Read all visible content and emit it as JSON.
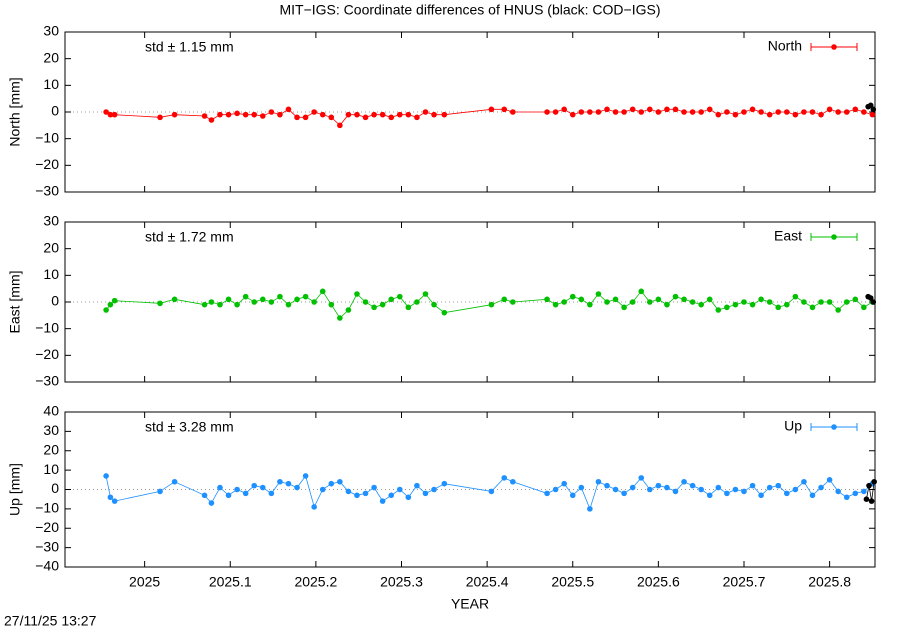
{
  "title": "MIT−IGS: Coordinate differences of HNUS (black: COD−IGS)",
  "xlabel": "YEAR",
  "timestamp": "27/11/25 13:27",
  "chart_data": [
    {
      "type": "line",
      "ylabel": "North [mm]",
      "annotation": "std ± 1.15 mm",
      "xlim": [
        2024.907,
        2025.853
      ],
      "xticks": [
        2025,
        2025.1,
        2025.2,
        2025.3,
        2025.4,
        2025.5,
        2025.6,
        2025.7,
        2025.8
      ],
      "ylim": [
        -30,
        30
      ],
      "yticks": [
        {
          "value": -30,
          "label": "−30"
        },
        {
          "value": -20,
          "label": "−20"
        },
        {
          "value": -10,
          "label": "−10"
        },
        0,
        10,
        20,
        30
      ],
      "legend": "top-right",
      "series": [
        {
          "name": "North",
          "color": "#ff0000",
          "x": [
            2024.955,
            2024.96,
            2024.965,
            2025.018,
            2025.035,
            2025.07,
            2025.078,
            2025.088,
            2025.098,
            2025.108,
            2025.118,
            2025.128,
            2025.138,
            2025.148,
            2025.158,
            2025.168,
            2025.178,
            2025.188,
            2025.198,
            2025.208,
            2025.218,
            2025.228,
            2025.238,
            2025.248,
            2025.258,
            2025.268,
            2025.278,
            2025.288,
            2025.298,
            2025.308,
            2025.318,
            2025.328,
            2025.338,
            2025.35,
            2025.405,
            2025.42,
            2025.43,
            2025.47,
            2025.48,
            2025.49,
            2025.5,
            2025.51,
            2025.52,
            2025.53,
            2025.54,
            2025.55,
            2025.56,
            2025.57,
            2025.58,
            2025.59,
            2025.6,
            2025.61,
            2025.62,
            2025.63,
            2025.64,
            2025.65,
            2025.66,
            2025.67,
            2025.68,
            2025.69,
            2025.7,
            2025.71,
            2025.72,
            2025.73,
            2025.74,
            2025.75,
            2025.76,
            2025.77,
            2025.78,
            2025.79,
            2025.8,
            2025.81,
            2025.82,
            2025.83,
            2025.84,
            2025.85
          ],
          "values": [
            0,
            -1,
            -1,
            -2,
            -1,
            -1.5,
            -3,
            -1,
            -1,
            -0.5,
            -1,
            -1,
            -1.5,
            0,
            -1,
            1,
            -2,
            -2,
            0,
            -1,
            -2,
            -5,
            -1,
            -1,
            -2,
            -1,
            -1,
            -2,
            -1,
            -1,
            -2,
            0,
            -1,
            -1,
            1,
            1,
            0,
            0,
            0,
            1,
            -1,
            0,
            0,
            0,
            1,
            0,
            0,
            1,
            0,
            1,
            0,
            1,
            1,
            0,
            0,
            0,
            1,
            -1,
            0,
            -1,
            0,
            1,
            0,
            -1,
            0,
            0,
            -1,
            0,
            0,
            -1,
            1,
            0,
            0,
            1,
            0,
            -1
          ]
        },
        {
          "color": "#000000",
          "x": [
            2025.845,
            2025.848,
            2025.851
          ],
          "values": [
            2,
            2.5,
            1
          ]
        }
      ]
    },
    {
      "type": "line",
      "ylabel": "East [mm]",
      "annotation": "std ± 1.72 mm",
      "xlim": [
        2024.907,
        2025.853
      ],
      "xticks": [
        2025,
        2025.1,
        2025.2,
        2025.3,
        2025.4,
        2025.5,
        2025.6,
        2025.7,
        2025.8
      ],
      "ylim": [
        -30,
        30
      ],
      "yticks": [
        {
          "value": -30,
          "label": "−30"
        },
        {
          "value": -20,
          "label": "−20"
        },
        {
          "value": -10,
          "label": "−10"
        },
        0,
        10,
        20,
        30
      ],
      "legend": "top-right",
      "series": [
        {
          "name": "East",
          "color": "#00c000",
          "x": [
            2024.955,
            2024.96,
            2024.965,
            2025.018,
            2025.035,
            2025.07,
            2025.078,
            2025.088,
            2025.098,
            2025.108,
            2025.118,
            2025.128,
            2025.138,
            2025.148,
            2025.158,
            2025.168,
            2025.178,
            2025.188,
            2025.198,
            2025.208,
            2025.218,
            2025.228,
            2025.238,
            2025.248,
            2025.258,
            2025.268,
            2025.278,
            2025.288,
            2025.298,
            2025.308,
            2025.318,
            2025.328,
            2025.338,
            2025.35,
            2025.405,
            2025.42,
            2025.43,
            2025.47,
            2025.48,
            2025.49,
            2025.5,
            2025.51,
            2025.52,
            2025.53,
            2025.54,
            2025.55,
            2025.56,
            2025.57,
            2025.58,
            2025.59,
            2025.6,
            2025.61,
            2025.62,
            2025.63,
            2025.64,
            2025.65,
            2025.66,
            2025.67,
            2025.68,
            2025.69,
            2025.7,
            2025.71,
            2025.72,
            2025.73,
            2025.74,
            2025.75,
            2025.76,
            2025.77,
            2025.78,
            2025.79,
            2025.8,
            2025.81,
            2025.82,
            2025.83,
            2025.84,
            2025.85
          ],
          "values": [
            -3,
            -1,
            0.5,
            -0.5,
            1,
            -1,
            0,
            -1,
            1,
            -1,
            2,
            0,
            1,
            0,
            2,
            -1,
            1,
            2,
            0,
            4,
            -1,
            -6,
            -3,
            3,
            0,
            -2,
            -1,
            1,
            2,
            -2,
            0,
            3,
            -1,
            -4,
            -1,
            1,
            0,
            1,
            -1,
            0,
            2,
            1,
            -1,
            3,
            0,
            1,
            -2,
            0,
            4,
            0,
            1,
            -1,
            2,
            1,
            0,
            -1,
            1,
            -3,
            -2,
            -1,
            0,
            -1,
            1,
            0,
            -2,
            -1,
            2,
            0,
            -2,
            0,
            0,
            -3,
            0,
            1,
            -2,
            0
          ]
        },
        {
          "color": "#000000",
          "x": [
            2025.845,
            2025.848,
            2025.851
          ],
          "values": [
            2,
            1.5,
            0
          ]
        }
      ]
    },
    {
      "type": "line",
      "ylabel": "Up [mm]",
      "annotation": "std ± 3.28 mm",
      "xlim": [
        2024.907,
        2025.853
      ],
      "xticks": [
        2025,
        2025.1,
        2025.2,
        2025.3,
        2025.4,
        2025.5,
        2025.6,
        2025.7,
        2025.8
      ],
      "ylim": [
        -40,
        40
      ],
      "yticks": [
        {
          "value": -40,
          "label": "−40"
        },
        {
          "value": -30,
          "label": "−30"
        },
        {
          "value": -20,
          "label": "−20"
        },
        {
          "value": -10,
          "label": "−10"
        },
        0,
        10,
        20,
        30,
        40
      ],
      "legend": "top-right",
      "series": [
        {
          "name": "Up",
          "color": "#1e90ff",
          "x": [
            2024.955,
            2024.96,
            2024.965,
            2025.018,
            2025.035,
            2025.07,
            2025.078,
            2025.088,
            2025.098,
            2025.108,
            2025.118,
            2025.128,
            2025.138,
            2025.148,
            2025.158,
            2025.168,
            2025.178,
            2025.188,
            2025.198,
            2025.208,
            2025.218,
            2025.228,
            2025.238,
            2025.248,
            2025.258,
            2025.268,
            2025.278,
            2025.288,
            2025.298,
            2025.308,
            2025.318,
            2025.328,
            2025.338,
            2025.35,
            2025.405,
            2025.42,
            2025.43,
            2025.47,
            2025.48,
            2025.49,
            2025.5,
            2025.51,
            2025.52,
            2025.53,
            2025.54,
            2025.55,
            2025.56,
            2025.57,
            2025.58,
            2025.59,
            2025.6,
            2025.61,
            2025.62,
            2025.63,
            2025.64,
            2025.65,
            2025.66,
            2025.67,
            2025.68,
            2025.69,
            2025.7,
            2025.71,
            2025.72,
            2025.73,
            2025.74,
            2025.75,
            2025.76,
            2025.77,
            2025.78,
            2025.79,
            2025.8,
            2025.81,
            2025.82,
            2025.83,
            2025.84,
            2025.85
          ],
          "values": [
            7,
            -4,
            -6,
            -1,
            4,
            -3,
            -7,
            1,
            -3,
            0,
            -2,
            2,
            1,
            -2,
            4,
            3,
            1,
            7,
            -9,
            0,
            3,
            4,
            -1,
            -3,
            -2,
            1,
            -6,
            -3,
            0,
            -4,
            2,
            -2,
            0,
            3,
            -1,
            6,
            4,
            -2,
            0,
            3,
            -3,
            1,
            -10,
            4,
            2,
            0,
            -2,
            1,
            6,
            0,
            2,
            1,
            -1,
            4,
            2,
            0,
            -3,
            1,
            -2,
            0,
            -1,
            2,
            -3,
            1,
            2,
            -2,
            0,
            4,
            -3,
            1,
            5,
            -1,
            -4,
            -2,
            -1,
            3
          ]
        },
        {
          "color": "#000000",
          "x": [
            2025.843,
            2025.846,
            2025.849,
            2025.852
          ],
          "values": [
            -5,
            2,
            -6,
            4
          ]
        }
      ]
    }
  ]
}
